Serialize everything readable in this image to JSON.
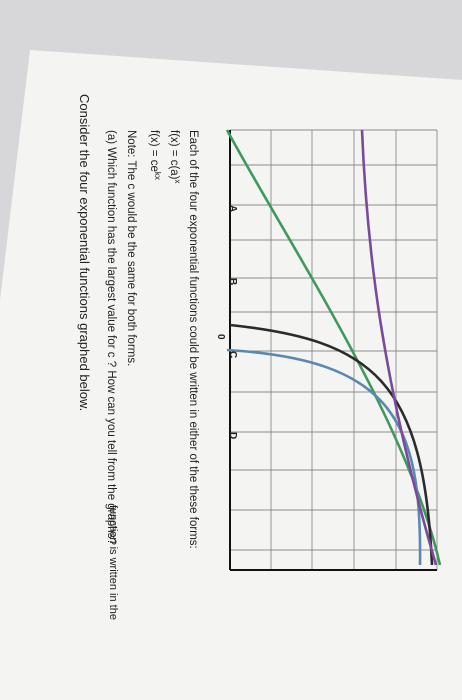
{
  "question": {
    "intro": "Consider the four exponential functions graphed below.",
    "forms_intro": "Each of the four exponential functions could be written in either of the these forms:",
    "form_1": "f(x) = c(a)",
    "form_1_sup": "x",
    "form_2": "f(x) = ce",
    "form_2_sup": "kx",
    "note": "Note: The c would be the same for both forms.",
    "part_a": "(a) Which function has the largest value for c ? How can you tell from the graphs?",
    "bottom_fragment": "function is written in the"
  },
  "graph": {
    "curve_labels": [
      "A",
      "B",
      "C",
      "D"
    ],
    "origin_label": "0"
  },
  "colors": {
    "paper": "#f4f4f2",
    "grid": "#8c8c90",
    "curve_a": "#3f9a5a",
    "curve_b": "#2b2b2b",
    "curve_c": "#5b87b4",
    "curve_d": "#7a4a9c"
  }
}
